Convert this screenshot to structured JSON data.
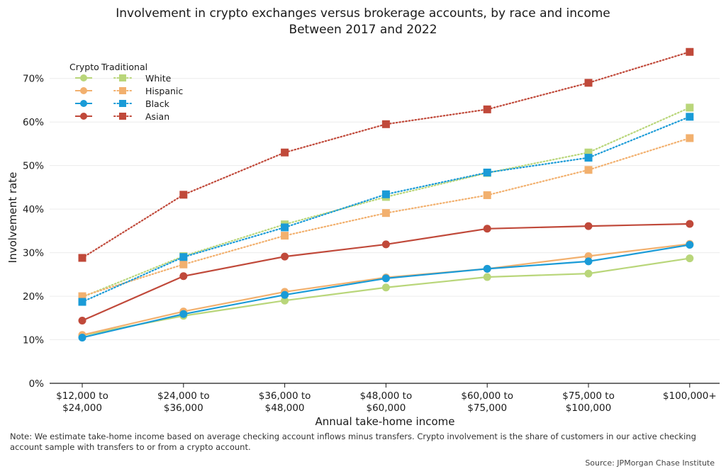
{
  "note": "Note: We estimate take-home income based on average checking account inflows minus transfers. Crypto involvement is the share of customers in our active checking account sample with transfers to or from a crypto account.",
  "source": "Source: JPMorgan Chase Institute",
  "chart_data": {
    "type": "line",
    "title": "Involvement in crypto exchanges versus brokerage accounts, by race and income",
    "subtitle": "Between 2017 and 2022",
    "xlabel": "Annual take-home income",
    "ylabel": "Involvement rate",
    "categories": [
      [
        "$12,000 to",
        "$24,000"
      ],
      [
        "$24,000 to",
        "$36,000"
      ],
      [
        "$36,000 to",
        "$48,000"
      ],
      [
        "$48,000 to",
        "$60,000"
      ],
      [
        "$60,000 to",
        "$75,000"
      ],
      [
        "$75,000 to",
        "$100,000"
      ],
      [
        "$100,000+"
      ]
    ],
    "ylim": [
      0,
      0.75
    ],
    "yticks": [
      {
        "value": 0,
        "label": "0%"
      },
      {
        "value": 0.1,
        "label": "10%"
      },
      {
        "value": 0.2,
        "label": "20%"
      },
      {
        "value": 0.3,
        "label": "30%"
      },
      {
        "value": 0.4,
        "label": "40%"
      },
      {
        "value": 0.5,
        "label": "50%"
      },
      {
        "value": 0.6,
        "label": "60%"
      },
      {
        "value": 0.7,
        "label": "70%"
      }
    ],
    "legend": {
      "position": "top-left",
      "headers": [
        "Crypto",
        "Traditional"
      ]
    },
    "groups": [
      {
        "name": "White",
        "color": "#b9d67a",
        "crypto": [
          0.11,
          0.155,
          0.19,
          0.22,
          0.244,
          0.252,
          0.287
        ],
        "traditional": [
          0.198,
          0.292,
          0.365,
          0.428,
          0.483,
          0.53,
          0.633
        ]
      },
      {
        "name": "Hispanic",
        "color": "#f2b06e",
        "crypto": [
          0.111,
          0.165,
          0.21,
          0.243,
          0.263,
          0.292,
          0.32
        ],
        "traditional": [
          0.2,
          0.273,
          0.339,
          0.391,
          0.432,
          0.49,
          0.563
        ]
      },
      {
        "name": "Black",
        "color": "#1a9bd7",
        "crypto": [
          0.105,
          0.159,
          0.203,
          0.241,
          0.263,
          0.28,
          0.318
        ],
        "traditional": [
          0.187,
          0.29,
          0.358,
          0.434,
          0.484,
          0.518,
          0.612
        ]
      },
      {
        "name": "Asian",
        "color": "#c0493a",
        "crypto": [
          0.144,
          0.246,
          0.291,
          0.319,
          0.355,
          0.361,
          0.366
        ],
        "traditional": [
          0.288,
          0.433,
          0.53,
          0.595,
          0.629,
          0.69,
          0.761
        ]
      }
    ],
    "grid": true
  }
}
